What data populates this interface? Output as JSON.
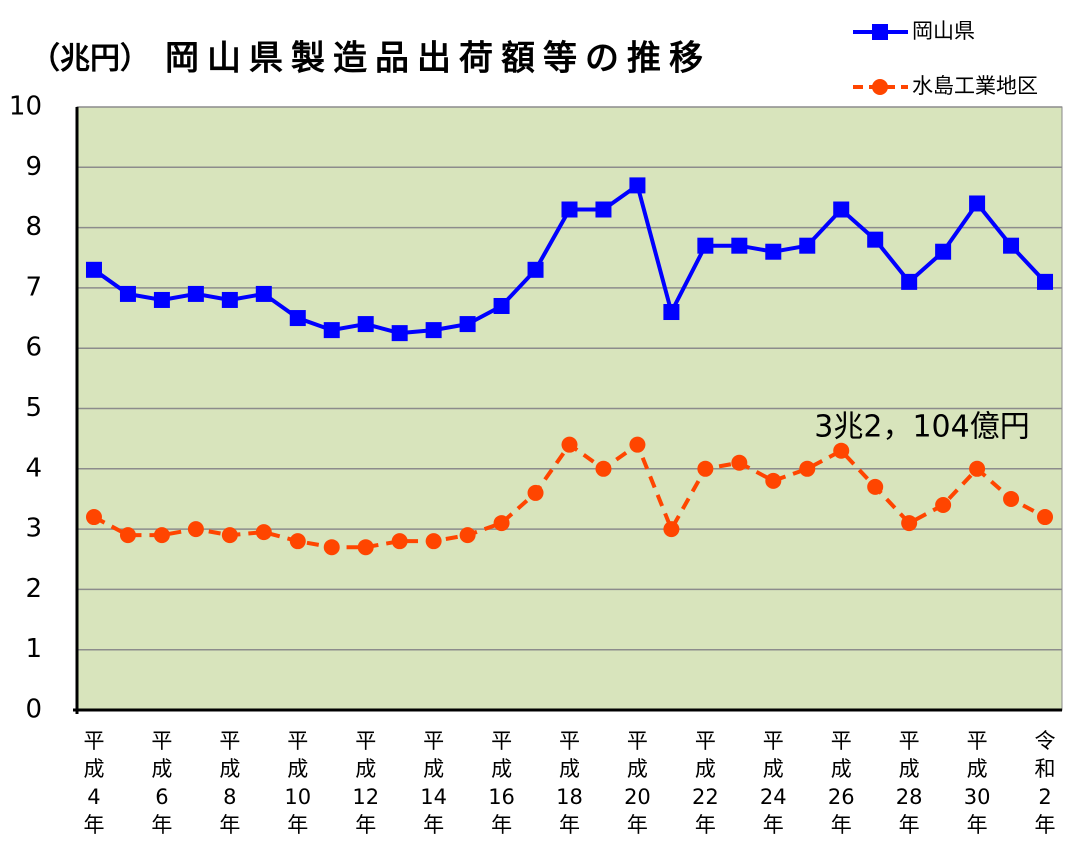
{
  "chart_data": {
    "type": "line",
    "title": "岡山県製造品出荷額等の推移",
    "y_label": "（兆円）",
    "categories": [
      "平成4年",
      null,
      "平成6年",
      null,
      "平成8年",
      null,
      "平成10年",
      null,
      "平成12年",
      null,
      "平成14年",
      null,
      "平成16年",
      null,
      "平成18年",
      null,
      "平成20年",
      null,
      "平成22年",
      null,
      "平成24年",
      null,
      "平成26年",
      null,
      "平成28年",
      null,
      "平成30年",
      null,
      "令和2年"
    ],
    "series": [
      {
        "name": "岡山県",
        "color": "#0000ff",
        "marker": "square",
        "dashed": false,
        "values": [
          7.3,
          6.9,
          6.8,
          6.9,
          6.8,
          6.9,
          6.5,
          6.3,
          6.4,
          6.25,
          6.3,
          6.4,
          6.7,
          7.3,
          8.3,
          8.3,
          8.7,
          6.6,
          7.7,
          7.7,
          7.6,
          7.7,
          8.3,
          7.8,
          7.1,
          7.6,
          8.4,
          7.7,
          7.1
        ]
      },
      {
        "name": "水島工業地区",
        "color": "#ff4500",
        "marker": "circle",
        "dashed": true,
        "values": [
          3.2,
          2.9,
          2.9,
          3.0,
          2.9,
          2.95,
          2.8,
          2.7,
          2.7,
          2.8,
          2.8,
          2.9,
          3.1,
          3.6,
          4.4,
          4.0,
          4.4,
          3.0,
          4.0,
          4.1,
          3.8,
          4.0,
          4.3,
          3.7,
          3.1,
          3.4,
          4.0,
          3.5,
          3.2
        ]
      }
    ],
    "annotation": "3兆2，104億円",
    "ylim": [
      0,
      10
    ],
    "yticks": [
      0,
      1,
      2,
      3,
      4,
      5,
      6,
      7,
      8,
      9,
      10
    ],
    "grid": true,
    "legend": "upper right",
    "plot_background": "#d8e4bc"
  }
}
